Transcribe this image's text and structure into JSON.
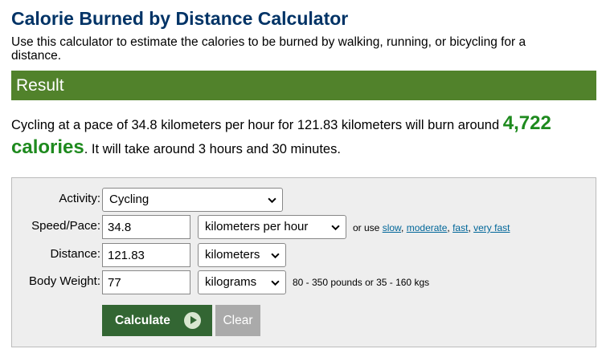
{
  "page": {
    "title": "Calorie Burned by Distance Calculator",
    "intro": "Use this calculator to estimate the calories to be burned by walking, running, or bicycling for a distance."
  },
  "result": {
    "header": "Result",
    "text_before": "Cycling at a pace of 34.8 kilometers per hour for 121.83 kilometers will burn around ",
    "calories_value": "4,722",
    "calories_unit": "calories",
    "text_after": ". It will take around 3 hours and 30 minutes."
  },
  "form": {
    "activity": {
      "label": "Activity:",
      "selected": "Cycling"
    },
    "speed": {
      "label": "Speed/Pace:",
      "value": "34.8",
      "unit_selected": "kilometers per hour",
      "or_use": "or use",
      "links": [
        "slow",
        "moderate",
        "fast",
        "very fast"
      ]
    },
    "distance": {
      "label": "Distance:",
      "value": "121.83",
      "unit_selected": "kilometers"
    },
    "weight": {
      "label": "Body Weight:",
      "value": "77",
      "unit_selected": "kilograms",
      "hint": "80 - 350 pounds or 35 - 160 kgs"
    },
    "calculate_label": "Calculate",
    "clear_label": "Clear"
  },
  "icons": {
    "dropdown": "chevron-down-icon",
    "calculate": "play-circle-icon"
  }
}
